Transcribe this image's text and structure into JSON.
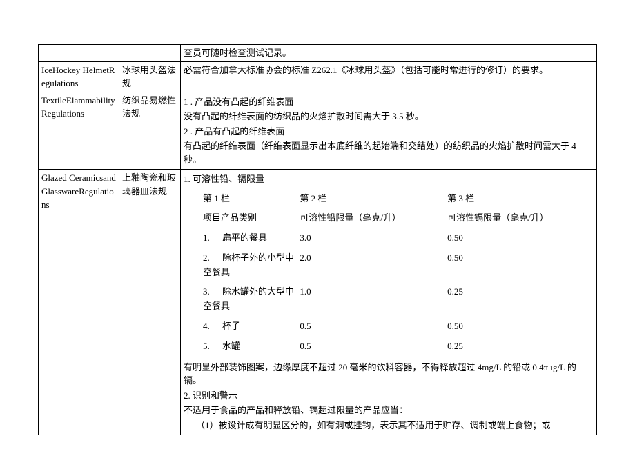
{
  "page": {
    "background_color": "#ffffff",
    "border_color": "#000000",
    "font_family": "SimSun",
    "font_size_pt": 10
  },
  "rows": {
    "r0": {
      "col1": "",
      "col2": "",
      "col3": "查员可随时检查测试记录。"
    },
    "r1": {
      "col1": "IceHockey HelmetRegulations",
      "col2": "冰球用头盔法规",
      "col3": "必需符合加拿大标准协会的标准 Z262.1《冰球用头盔》（包括可能时常进行的修订）的要求。"
    },
    "r2": {
      "col1": "TextileElammabilityRegulations",
      "col2": "纺织品易燃性法规",
      "line1": "1     . 产品没有凸起的纤维表面",
      "line2": "没有凸起的纤维表面的纺织品的火焰扩散时间需大于 3.5 秒。",
      "line3": "2     . 产品有凸起的纤维表面",
      "line4": "有凸起的纤维表面（纤维表面显示出本底纤维的起始端和交结处）的纺织品的火焰扩散时间需大于 4 秒。"
    },
    "r3": {
      "col1": "Glazed CeramicsandGlasswareRegulations",
      "col2": "上釉陶瓷和玻璃器皿法规",
      "heading1": "1. 可溶性铅、镉限量",
      "tbl": {
        "type": "table",
        "columns": [
          "项目产品类别",
          "可溶性铅限量（毫克/升）",
          "可溶性镉限量（毫克/升）"
        ],
        "col_headers_top": [
          "第 1 栏",
          "第 2 栏",
          "第 3 栏"
        ],
        "rows": [
          {
            "idx": "1.",
            "name": "扁平的餐具",
            "pb": "3.0",
            "cd": "0.50"
          },
          {
            "idx": "2.",
            "name": "除杯子外的小型中空餐具",
            "pb": "2.0",
            "cd": "0.50"
          },
          {
            "idx": "3.",
            "name": "除水罐外的大型中空餐具",
            "pb": "1.0",
            "cd": "0.25"
          },
          {
            "idx": "4.",
            "name": "杯子",
            "pb": "0.5",
            "cd": "0.50"
          },
          {
            "idx": "5.",
            "name": "水罐",
            "pb": "0.5",
            "cd": "0.25"
          }
        ]
      },
      "note1": "有明显外部装饰图案，边缘厚度不超过 20 毫米的饮料容器，不得释放超过 4mg/L 的铅或 0.4π ιg/L 的镉。",
      "heading2": "2. 识别和警示",
      "note2": "不适用于食品的产品和释放铅、镉超过限量的产品应当：",
      "note3": "（1）被设计成有明显区分的，如有洞或挂钩，表示其不适用于贮存、调制或端上食物；或"
    }
  }
}
